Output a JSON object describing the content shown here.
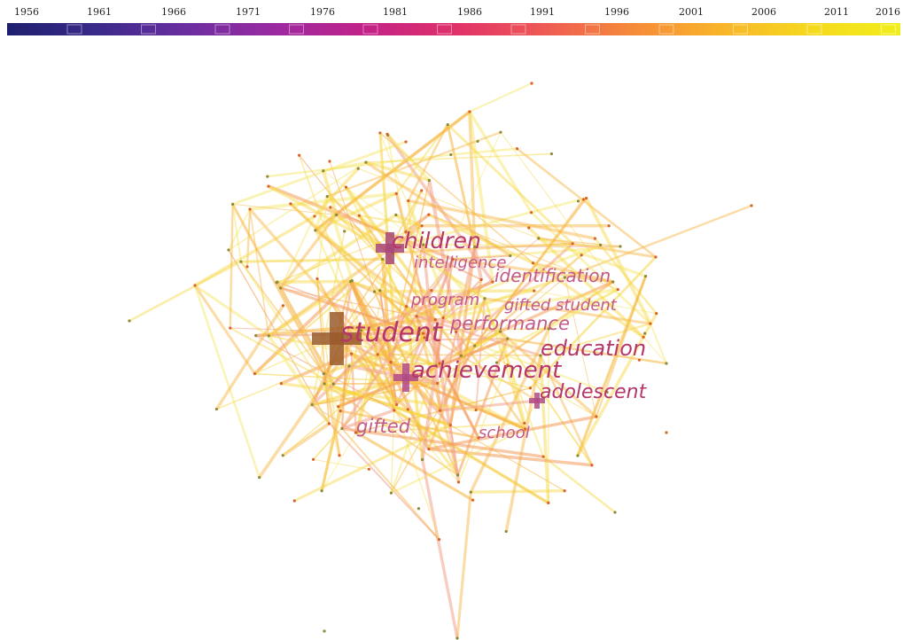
{
  "timeline": {
    "years": [
      "1956",
      "1961",
      "1966",
      "1971",
      "1976",
      "1981",
      "1986",
      "1991",
      "1996",
      "2001",
      "2006",
      "2011",
      "2016"
    ],
    "gradient_colors": [
      "#1e1f6e",
      "#3b2a8a",
      "#6a2fa0",
      "#9b2aa0",
      "#c22288",
      "#e0306a",
      "#ee5a55",
      "#f58a3a",
      "#f9b52a",
      "#f5d91e",
      "#f2ee1c"
    ]
  },
  "network": {
    "keywords": [
      {
        "id": "children",
        "label": "children",
        "color": "#b5366a"
      },
      {
        "id": "intelligence",
        "label": "intelligence",
        "color": "#c25a8c"
      },
      {
        "id": "identification",
        "label": "identification",
        "color": "#c25a8c"
      },
      {
        "id": "program",
        "label": "program",
        "color": "#c25a8c"
      },
      {
        "id": "gifted-student",
        "label": "gifted student",
        "color": "#c25a8c"
      },
      {
        "id": "performance",
        "label": "performance",
        "color": "#c25a8c"
      },
      {
        "id": "student",
        "label": "student",
        "color": "#b5366a"
      },
      {
        "id": "education",
        "label": "education",
        "color": "#b5366a"
      },
      {
        "id": "achievement",
        "label": "achievement",
        "color": "#b5366a"
      },
      {
        "id": "adolescent",
        "label": "adolescent",
        "color": "#b5366a"
      },
      {
        "id": "gifted",
        "label": "gifted",
        "color": "#c25a8c"
      },
      {
        "id": "school",
        "label": "school",
        "color": "#c25a8c"
      }
    ],
    "edge_colors": [
      "#f3e45a",
      "#f6d43c",
      "#f7b23a",
      "#f49a5a",
      "#f2a38a"
    ]
  }
}
